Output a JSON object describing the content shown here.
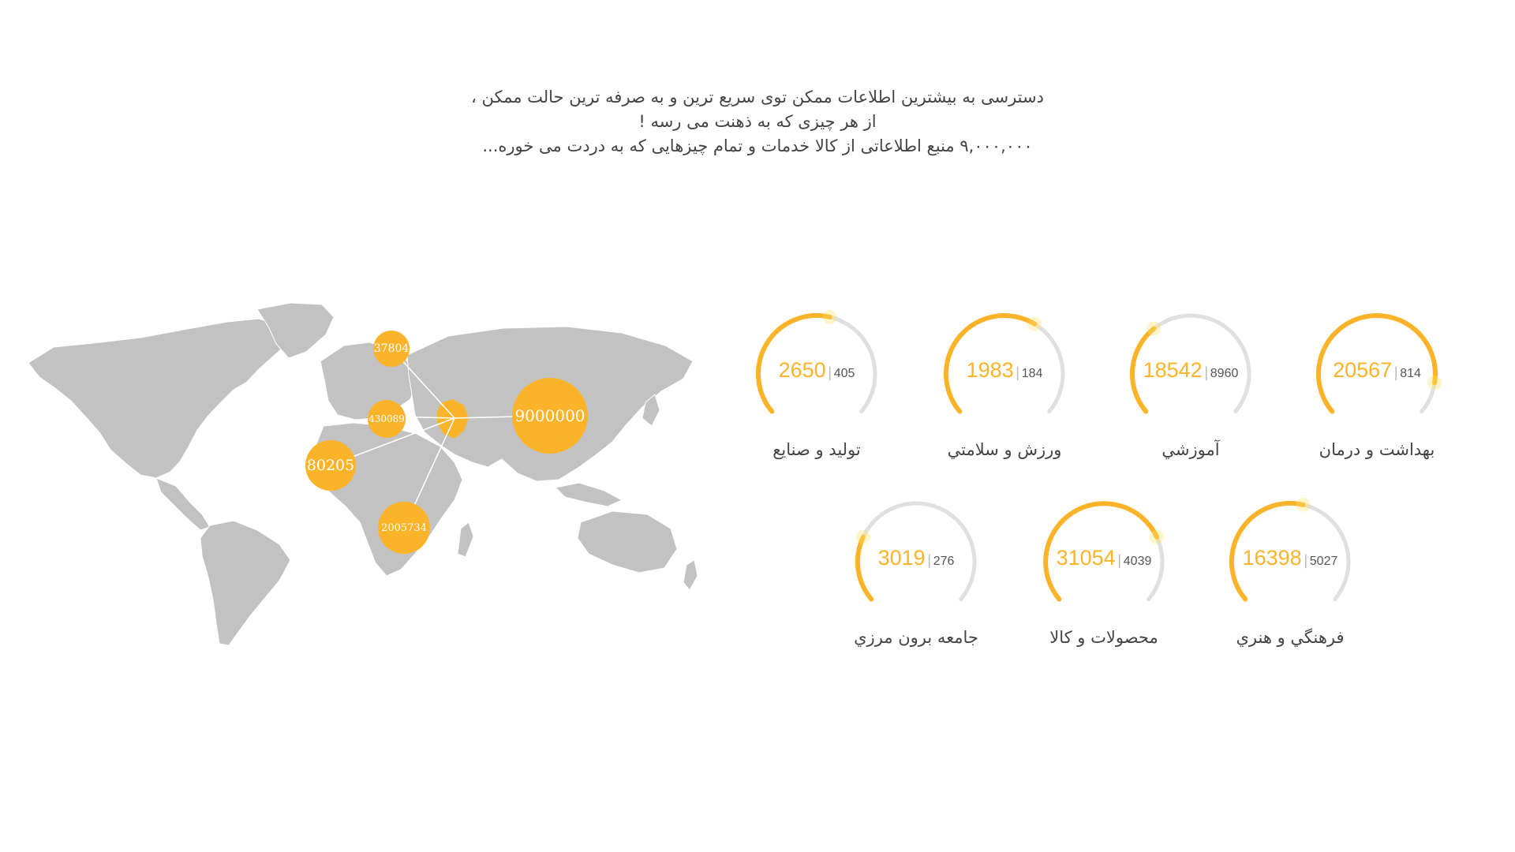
{
  "intro": {
    "line1": "دسترسی به بیشترین اطلاعات ممکن توی سریع ترین و به صرفه ترین حالت ممکن ،",
    "line2": "از هر چیزی که به ذهنت می رسه !",
    "line3": "۹,۰۰۰,۰۰۰ منبع اطلاعاتی از کالا خدمات و تمام چیزهایی که به دردت می خوره..."
  },
  "map": {
    "bubbles": [
      {
        "value": "37804"
      },
      {
        "value": "430089"
      },
      {
        "value": "9000000"
      },
      {
        "value": "80205"
      },
      {
        "value": "2005734"
      }
    ]
  },
  "stats": [
    {
      "total": "20567",
      "count": "814",
      "label": "بهداشت و درمان",
      "progress": 0.88
    },
    {
      "total": "18542",
      "count": "8960",
      "label": "آموزشي",
      "progress": 0.35
    },
    {
      "total": "1983",
      "count": "184",
      "label": "ورزش و سلامتي",
      "progress": 0.62
    },
    {
      "total": "2650",
      "count": "405",
      "label": "توليد و صنايع",
      "progress": 0.55
    },
    {
      "total": "16398",
      "count": "5027",
      "label": "فرهنگي و هنري",
      "progress": 0.55
    },
    {
      "total": "31054",
      "count": "4039",
      "label": "محصولات و كالا",
      "progress": 0.75
    },
    {
      "total": "3019",
      "count": "276",
      "label": "جامعه برون مرزي",
      "progress": 0.25
    }
  ],
  "colors": {
    "accent": "#fbb42a",
    "gauge_track": "#e0e0e0",
    "map_land": "#c2c2c2"
  }
}
